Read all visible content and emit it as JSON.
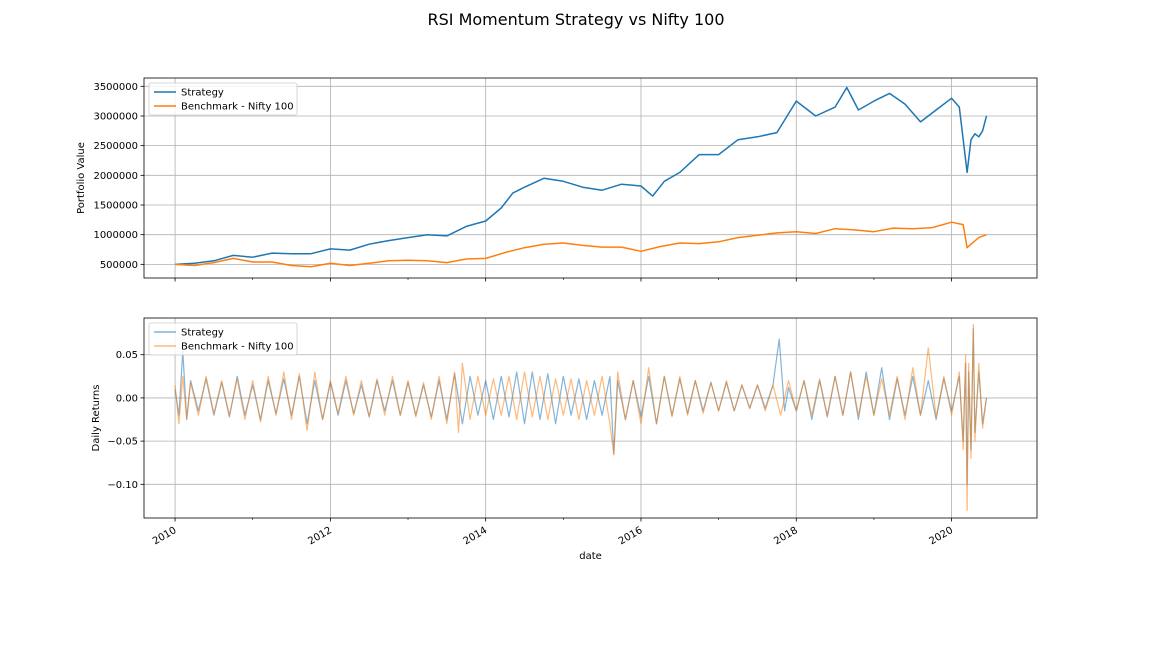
{
  "figure": {
    "title": "RSI Momentum Strategy vs Nifty 100"
  },
  "colors": {
    "strategy": "#1f77b4",
    "benchmark": "#ff7f0e",
    "grid": "#b0b0b0"
  },
  "chart_data": [
    {
      "type": "line",
      "title": "",
      "xlabel": "",
      "ylabel": "Portfolio Value",
      "xlim": [
        2009.6,
        2021.1
      ],
      "ylim": [
        270000,
        3640000
      ],
      "grid": true,
      "legend": "top-left",
      "x_ticks": [
        2010,
        2012,
        2014,
        2016,
        2018,
        2020
      ],
      "y_ticks": [
        500000,
        1000000,
        1500000,
        2000000,
        2500000,
        3000000,
        3500000
      ],
      "y_tick_labels": [
        "500000",
        "1000000",
        "1500000",
        "2000000",
        "2500000",
        "3000000",
        "3500000"
      ],
      "series": [
        {
          "name": "Strategy",
          "color": "#1f77b4",
          "x": [
            2010.0,
            2010.25,
            2010.5,
            2010.75,
            2011.0,
            2011.25,
            2011.5,
            2011.75,
            2012.0,
            2012.25,
            2012.5,
            2012.75,
            2013.0,
            2013.25,
            2013.5,
            2013.75,
            2014.0,
            2014.2,
            2014.35,
            2014.5,
            2014.75,
            2015.0,
            2015.25,
            2015.5,
            2015.75,
            2016.0,
            2016.15,
            2016.3,
            2016.5,
            2016.75,
            2017.0,
            2017.25,
            2017.5,
            2017.75,
            2018.0,
            2018.25,
            2018.5,
            2018.65,
            2018.8,
            2019.0,
            2019.2,
            2019.4,
            2019.6,
            2019.8,
            2020.0,
            2020.1,
            2020.15,
            2020.2,
            2020.25,
            2020.3,
            2020.35,
            2020.4,
            2020.45
          ],
          "y": [
            500000,
            520000,
            560000,
            650000,
            620000,
            690000,
            680000,
            680000,
            760000,
            740000,
            840000,
            900000,
            950000,
            1000000,
            980000,
            1140000,
            1230000,
            1450000,
            1700000,
            1800000,
            1950000,
            1900000,
            1800000,
            1750000,
            1850000,
            1820000,
            1650000,
            1900000,
            2050000,
            2350000,
            2350000,
            2600000,
            2650000,
            2720000,
            3250000,
            3000000,
            3150000,
            3480000,
            3100000,
            3250000,
            3380000,
            3200000,
            2900000,
            3100000,
            3300000,
            3150000,
            2600000,
            2050000,
            2600000,
            2700000,
            2650000,
            2750000,
            3000000
          ]
        },
        {
          "name": "Benchmark - Nifty 100",
          "color": "#ff7f0e",
          "x": [
            2010.0,
            2010.25,
            2010.5,
            2010.75,
            2011.0,
            2011.25,
            2011.5,
            2011.75,
            2012.0,
            2012.25,
            2012.5,
            2012.75,
            2013.0,
            2013.25,
            2013.5,
            2013.75,
            2014.0,
            2014.25,
            2014.5,
            2014.75,
            2015.0,
            2015.25,
            2015.5,
            2015.75,
            2016.0,
            2016.25,
            2016.5,
            2016.75,
            2017.0,
            2017.25,
            2017.5,
            2017.75,
            2018.0,
            2018.25,
            2018.5,
            2018.75,
            2019.0,
            2019.25,
            2019.5,
            2019.75,
            2020.0,
            2020.15,
            2020.2,
            2020.25,
            2020.35,
            2020.45
          ],
          "y": [
            500000,
            480000,
            530000,
            600000,
            540000,
            540000,
            480000,
            460000,
            520000,
            480000,
            520000,
            560000,
            570000,
            560000,
            530000,
            590000,
            600000,
            700000,
            780000,
            840000,
            860000,
            820000,
            790000,
            790000,
            720000,
            800000,
            860000,
            850000,
            880000,
            950000,
            990000,
            1030000,
            1050000,
            1020000,
            1100000,
            1080000,
            1050000,
            1110000,
            1100000,
            1120000,
            1210000,
            1170000,
            780000,
            840000,
            950000,
            1000000
          ]
        }
      ]
    },
    {
      "type": "line",
      "title": "",
      "xlabel": "date",
      "ylabel": "Daily Returns",
      "xlim": [
        2009.6,
        2021.1
      ],
      "ylim": [
        -0.139,
        0.0925
      ],
      "grid": true,
      "legend": "top-left",
      "x_ticks": [
        2010,
        2012,
        2014,
        2016,
        2018,
        2020
      ],
      "x_tick_labels": [
        "2010",
        "2012",
        "2014",
        "2016",
        "2018",
        "2020"
      ],
      "y_ticks": [
        0.05,
        0.0,
        -0.05,
        -0.1
      ],
      "y_tick_labels": [
        "0.05",
        "0.00",
        "−0.05",
        "−0.10"
      ],
      "series_style": "daily returns, semi-transparent lines",
      "series": [
        {
          "name": "Strategy",
          "color": "#1f77b4",
          "x": [
            2010.0,
            2010.05,
            2010.1,
            2010.15,
            2010.2,
            2010.3,
            2010.4,
            2010.5,
            2010.6,
            2010.7,
            2010.8,
            2010.9,
            2011.0,
            2011.1,
            2011.2,
            2011.3,
            2011.4,
            2011.5,
            2011.6,
            2011.7,
            2011.8,
            2011.9,
            2012.0,
            2012.1,
            2012.2,
            2012.3,
            2012.4,
            2012.5,
            2012.6,
            2012.7,
            2012.8,
            2012.9,
            2013.0,
            2013.1,
            2013.2,
            2013.3,
            2013.4,
            2013.5,
            2013.6,
            2013.7,
            2013.8,
            2013.9,
            2014.0,
            2014.1,
            2014.2,
            2014.3,
            2014.4,
            2014.5,
            2014.6,
            2014.7,
            2014.8,
            2014.9,
            2015.0,
            2015.1,
            2015.2,
            2015.3,
            2015.4,
            2015.5,
            2015.6,
            2015.65,
            2015.7,
            2015.8,
            2015.9,
            2016.0,
            2016.1,
            2016.2,
            2016.3,
            2016.4,
            2016.5,
            2016.6,
            2016.7,
            2016.8,
            2016.9,
            2017.0,
            2017.1,
            2017.2,
            2017.3,
            2017.4,
            2017.5,
            2017.6,
            2017.7,
            2017.78,
            2017.85,
            2017.9,
            2018.0,
            2018.1,
            2018.2,
            2018.3,
            2018.4,
            2018.5,
            2018.6,
            2018.7,
            2018.8,
            2018.9,
            2019.0,
            2019.1,
            2019.2,
            2019.3,
            2019.4,
            2019.5,
            2019.6,
            2019.7,
            2019.8,
            2019.9,
            2020.0,
            2020.1,
            2020.15,
            2020.18,
            2020.2,
            2020.22,
            2020.25,
            2020.28,
            2020.3,
            2020.35,
            2020.4,
            2020.45
          ],
          "y": [
            0.01,
            -0.02,
            0.054,
            -0.025,
            0.02,
            -0.015,
            0.022,
            -0.02,
            0.018,
            -0.022,
            0.025,
            -0.02,
            0.015,
            -0.025,
            0.02,
            -0.018,
            0.022,
            -0.02,
            0.025,
            -0.03,
            0.02,
            -0.025,
            0.018,
            -0.02,
            0.02,
            -0.018,
            0.015,
            -0.022,
            0.02,
            -0.015,
            0.02,
            -0.02,
            0.018,
            -0.02,
            0.015,
            -0.022,
            0.02,
            -0.025,
            0.028,
            -0.03,
            0.025,
            -0.02,
            0.02,
            -0.025,
            0.025,
            -0.022,
            0.03,
            -0.03,
            0.03,
            -0.025,
            0.028,
            -0.03,
            0.025,
            -0.02,
            0.022,
            -0.025,
            0.02,
            -0.02,
            0.025,
            -0.065,
            0.02,
            -0.025,
            0.02,
            -0.022,
            0.025,
            -0.03,
            0.025,
            -0.02,
            0.022,
            -0.018,
            0.02,
            -0.015,
            0.018,
            -0.015,
            0.018,
            -0.015,
            0.015,
            -0.012,
            0.015,
            -0.012,
            0.015,
            0.068,
            -0.015,
            0.012,
            -0.015,
            0.02,
            -0.025,
            0.02,
            -0.022,
            0.025,
            -0.02,
            0.03,
            -0.025,
            0.03,
            -0.02,
            0.035,
            -0.025,
            0.022,
            -0.02,
            0.025,
            -0.02,
            0.02,
            -0.025,
            0.022,
            -0.015,
            0.025,
            -0.05,
            0.04,
            -0.1,
            0.03,
            -0.06,
            0.08,
            -0.04,
            0.03,
            -0.03,
            0.0
          ]
        },
        {
          "name": "Benchmark - Nifty 100",
          "color": "#ff7f0e",
          "x": [
            2010.0,
            2010.05,
            2010.1,
            2010.15,
            2010.2,
            2010.3,
            2010.4,
            2010.5,
            2010.6,
            2010.7,
            2010.8,
            2010.9,
            2011.0,
            2011.1,
            2011.2,
            2011.3,
            2011.4,
            2011.5,
            2011.6,
            2011.7,
            2011.8,
            2011.9,
            2012.0,
            2012.1,
            2012.2,
            2012.3,
            2012.4,
            2012.5,
            2012.6,
            2012.7,
            2012.8,
            2012.9,
            2013.0,
            2013.1,
            2013.2,
            2013.3,
            2013.4,
            2013.5,
            2013.6,
            2013.65,
            2013.7,
            2013.8,
            2013.9,
            2014.0,
            2014.1,
            2014.2,
            2014.3,
            2014.4,
            2014.5,
            2014.6,
            2014.7,
            2014.8,
            2014.9,
            2015.0,
            2015.1,
            2015.2,
            2015.3,
            2015.4,
            2015.5,
            2015.6,
            2015.65,
            2015.7,
            2015.8,
            2015.9,
            2016.0,
            2016.1,
            2016.2,
            2016.3,
            2016.4,
            2016.5,
            2016.6,
            2016.7,
            2016.8,
            2016.9,
            2017.0,
            2017.1,
            2017.2,
            2017.3,
            2017.4,
            2017.5,
            2017.6,
            2017.7,
            2017.8,
            2017.9,
            2018.0,
            2018.1,
            2018.2,
            2018.3,
            2018.4,
            2018.5,
            2018.6,
            2018.7,
            2018.8,
            2018.9,
            2019.0,
            2019.1,
            2019.2,
            2019.3,
            2019.4,
            2019.5,
            2019.6,
            2019.7,
            2019.8,
            2019.9,
            2020.0,
            2020.1,
            2020.15,
            2020.18,
            2020.2,
            2020.22,
            2020.25,
            2020.28,
            2020.3,
            2020.35,
            2020.4,
            2020.45
          ],
          "y": [
            0.015,
            -0.03,
            0.025,
            -0.025,
            0.018,
            -0.02,
            0.025,
            -0.018,
            0.02,
            -0.02,
            0.022,
            -0.025,
            0.02,
            -0.028,
            0.025,
            -0.02,
            0.03,
            -0.025,
            0.028,
            -0.038,
            0.03,
            -0.025,
            0.02,
            -0.018,
            0.025,
            -0.02,
            0.02,
            -0.022,
            0.022,
            -0.02,
            0.025,
            -0.02,
            0.02,
            -0.022,
            0.018,
            -0.025,
            0.025,
            -0.03,
            0.03,
            -0.04,
            0.04,
            -0.025,
            0.025,
            -0.02,
            0.022,
            -0.02,
            0.025,
            -0.025,
            0.03,
            -0.022,
            0.025,
            -0.025,
            0.022,
            -0.02,
            0.022,
            -0.025,
            0.02,
            -0.02,
            0.025,
            -0.03,
            -0.066,
            0.03,
            -0.025,
            0.02,
            -0.03,
            0.035,
            -0.03,
            0.025,
            -0.022,
            0.025,
            -0.02,
            0.02,
            -0.018,
            0.018,
            -0.015,
            0.02,
            -0.015,
            0.015,
            -0.012,
            0.015,
            -0.015,
            0.015,
            -0.02,
            0.02,
            -0.015,
            0.02,
            -0.02,
            0.022,
            -0.02,
            0.025,
            -0.02,
            0.03,
            -0.02,
            0.025,
            -0.02,
            0.022,
            -0.02,
            0.025,
            -0.025,
            0.035,
            -0.02,
            0.058,
            -0.022,
            0.025,
            -0.02,
            0.03,
            -0.06,
            0.05,
            -0.13,
            0.04,
            -0.07,
            0.085,
            -0.05,
            0.04,
            -0.035,
            0.0
          ]
        }
      ]
    }
  ]
}
